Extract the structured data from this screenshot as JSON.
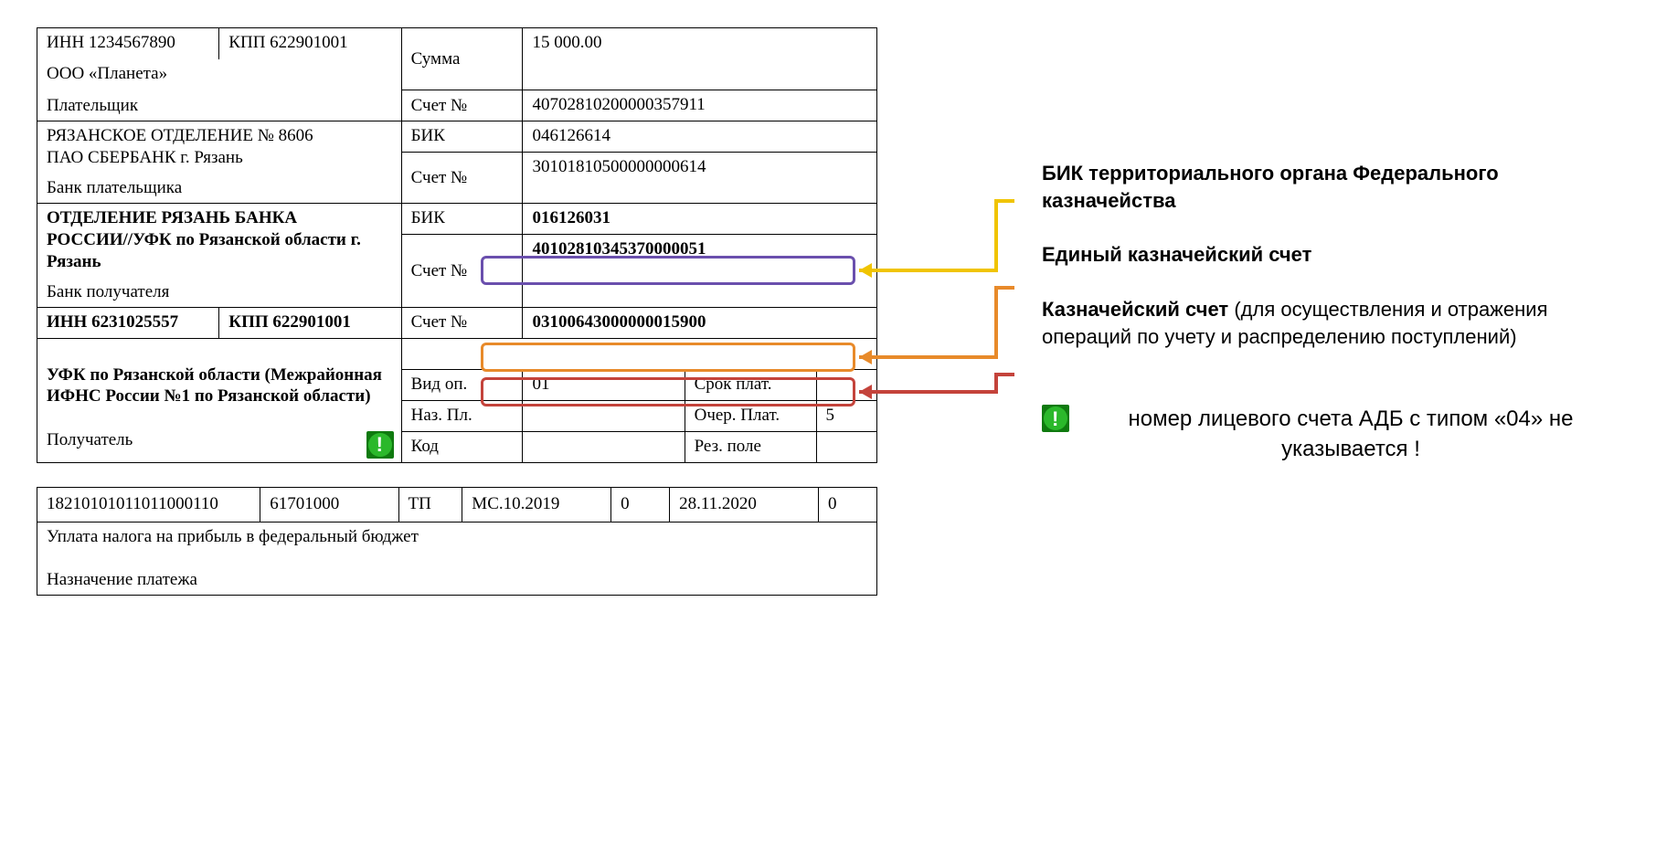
{
  "payer": {
    "inn_label": "ИНН 1234567890",
    "kpp_label": "КПП 622901001",
    "name": "ООО «Планета»",
    "role_label": "Плательщик"
  },
  "amount": {
    "label": "Сумма",
    "value": "15 000.00"
  },
  "payer_account": {
    "label": "Счет №",
    "value": "40702810200000357911"
  },
  "payer_bank": {
    "name_line1": "РЯЗАНСКОЕ ОТДЕЛЕНИЕ № 8606",
    "name_line2": "ПАО СБЕРБАНК г. Рязань",
    "role_label": "Банк плательщика",
    "bik_label": "БИК",
    "bik_value": "046126614",
    "acct_label": "Счет №",
    "acct_value": "30101810500000000614"
  },
  "recip_bank": {
    "name_line1": "ОТДЕЛЕНИЕ РЯЗАНЬ БАНКА",
    "name_line2": "РОССИИ//УФК по Рязанской области г.",
    "name_line3": "Рязань",
    "role_label": "Банк получателя",
    "bik_label": "БИК",
    "bik_value": "016126031",
    "acct_label": "Счет №",
    "acct_value": "40102810345370000051"
  },
  "recipient": {
    "inn_label": "ИНН 6231025557",
    "kpp_label": "КПП 622901001",
    "acct_label": "Счет №",
    "acct_value": "03100643000000015900",
    "name_line1": "УФК по Рязанской области (Межрайонная",
    "name_line2": "ИФНС России №1 по Рязанской области)",
    "role_label": "Получатель"
  },
  "ops": {
    "vid_label": "Вид оп.",
    "vid_value": "01",
    "srok_label": "Срок плат.",
    "naz_label": "Наз. Пл.",
    "ocher_label": "Очер. Плат.",
    "ocher_value": "5",
    "kod_label": "Код",
    "rez_label": "Рез. поле"
  },
  "codes": {
    "c1": "18210101011011000110",
    "c2": "61701000",
    "c3": "ТП",
    "c4": "МС.10.2019",
    "c5": "0",
    "c6": "28.11.2020",
    "c7": "0"
  },
  "purpose": {
    "text": "Уплата налога на прибыль в федеральный бюджет",
    "label": "Назначение платежа"
  },
  "annotations": {
    "a1_bold": "БИК территориального органа Федерального казначейства",
    "a2_bold": "Единый казначейский счет",
    "a3_bold": "Казначейский счет",
    "a3_rest": " (для осуществления и отражения операций по учету и распределению поступлений)",
    "note": "номер лицевого счета АДБ с типом «04» не указывается !"
  },
  "colors": {
    "yellow": "#f0c400",
    "purple": "#6a4fad",
    "orange": "#e88a2a",
    "red": "#c4433b",
    "green": "#2bb82b"
  }
}
